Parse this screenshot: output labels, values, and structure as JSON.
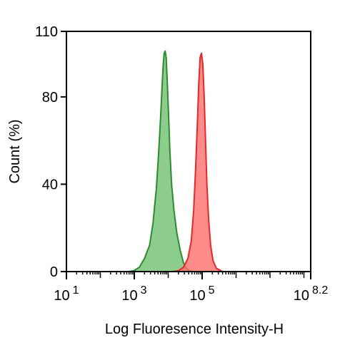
{
  "chart_data": {
    "type": "area",
    "title": "",
    "xlabel": "Log Fluoresence Intensity-H",
    "ylabel": "Count  (%)",
    "x_scale": "log10",
    "xlim_log10": [
      1,
      8.2
    ],
    "ylim": [
      0,
      110
    ],
    "x_ticks": [
      {
        "base": "10",
        "exp": "1",
        "value_log10": 1
      },
      {
        "base": "10",
        "exp": "3",
        "value_log10": 3
      },
      {
        "base": "10",
        "exp": "5",
        "value_log10": 5
      },
      {
        "base": "10",
        "exp": "8.2",
        "value_log10": 8.2
      }
    ],
    "y_ticks": [
      {
        "label": "0",
        "value": 0
      },
      {
        "label": "40",
        "value": 40
      },
      {
        "label": "80",
        "value": 80
      },
      {
        "label": "110",
        "value": 110
      }
    ],
    "grid": false,
    "legend": "none",
    "series": [
      {
        "stroke": "#2e8b2e",
        "fill": "#6fbf6f",
        "points_log10_x": [
          [
            2.85,
            0
          ],
          [
            3.0,
            0.5
          ],
          [
            3.15,
            2
          ],
          [
            3.3,
            6
          ],
          [
            3.45,
            12
          ],
          [
            3.55,
            22
          ],
          [
            3.65,
            38
          ],
          [
            3.72,
            55
          ],
          [
            3.78,
            72
          ],
          [
            3.82,
            85
          ],
          [
            3.85,
            94
          ],
          [
            3.88,
            100
          ],
          [
            3.91,
            101
          ],
          [
            3.94,
            98
          ],
          [
            3.97,
            88
          ],
          [
            4.01,
            72
          ],
          [
            4.05,
            55
          ],
          [
            4.1,
            40
          ],
          [
            4.17,
            28
          ],
          [
            4.25,
            18
          ],
          [
            4.35,
            10
          ],
          [
            4.45,
            4
          ],
          [
            4.55,
            1.2
          ],
          [
            4.7,
            0
          ]
        ]
      },
      {
        "stroke": "#e62828",
        "fill": "#ff6e6e",
        "points_log10_x": [
          [
            4.15,
            0
          ],
          [
            4.3,
            0.4
          ],
          [
            4.45,
            2
          ],
          [
            4.58,
            6
          ],
          [
            4.68,
            14
          ],
          [
            4.75,
            28
          ],
          [
            4.81,
            48
          ],
          [
            4.86,
            68
          ],
          [
            4.9,
            86
          ],
          [
            4.94,
            98
          ],
          [
            4.98,
            100
          ],
          [
            5.02,
            95
          ],
          [
            5.06,
            80
          ],
          [
            5.1,
            60
          ],
          [
            5.14,
            40
          ],
          [
            5.19,
            24
          ],
          [
            5.25,
            12
          ],
          [
            5.32,
            5
          ],
          [
            5.42,
            1.5
          ],
          [
            5.6,
            0
          ]
        ]
      }
    ]
  }
}
